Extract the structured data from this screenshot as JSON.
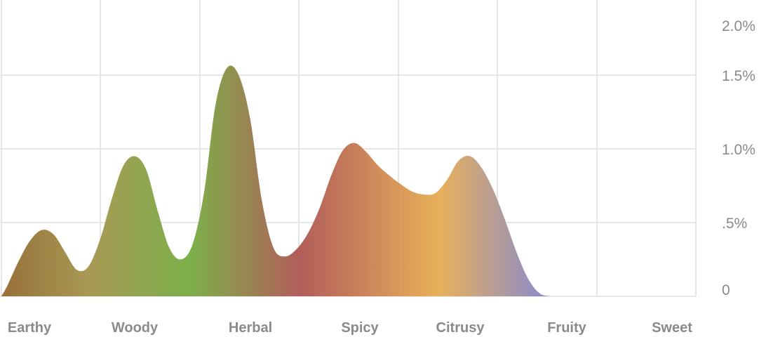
{
  "chart_data": {
    "type": "area",
    "title": "",
    "xlabel": "",
    "ylabel": "",
    "ylim": [
      0,
      2.0
    ],
    "y_ticks": [
      {
        "value": 0,
        "label": "0"
      },
      {
        "value": 0.5,
        "label": ".5%"
      },
      {
        "value": 1.0,
        "label": "1.0%"
      },
      {
        "value": 1.5,
        "label": "1.5%"
      },
      {
        "value": 2.0,
        "label": "2.0%"
      }
    ],
    "y_axis_position": "right",
    "grid": true,
    "categories": [
      "Earthy",
      "Woody",
      "Herbal",
      "Spicy",
      "Citrusy",
      "Fruity",
      "Sweet"
    ],
    "x": [
      0,
      0.05,
      0.15,
      0.25,
      0.35,
      0.45,
      0.55,
      0.65,
      0.75,
      0.85,
      0.95,
      1.05,
      1.15,
      1.25,
      1.35,
      1.45,
      1.55,
      1.65,
      1.75,
      1.85,
      1.95,
      2.05,
      2.15,
      2.25,
      2.35,
      2.45,
      2.55,
      2.65,
      2.75,
      2.85,
      2.95,
      3.05,
      3.15,
      3.25,
      3.35,
      3.45,
      3.55,
      3.65,
      3.75,
      3.85,
      3.95,
      4.05,
      4.15,
      4.25,
      4.35,
      4.45,
      4.55,
      4.65,
      4.75,
      4.85,
      4.95,
      5.05,
      5.15,
      5.25,
      5.35,
      5.45,
      5.55,
      5.65,
      5.75,
      5.85,
      5.95,
      6.0
    ],
    "series": [
      {
        "values": [
          0.0,
          0.07,
          0.24,
          0.38,
          0.45,
          0.42,
          0.3,
          0.18,
          0.2,
          0.38,
          0.65,
          0.88,
          0.95,
          0.86,
          0.58,
          0.33,
          0.25,
          0.35,
          0.7,
          1.3,
          1.55,
          1.5,
          1.2,
          0.65,
          0.33,
          0.27,
          0.32,
          0.43,
          0.6,
          0.82,
          0.99,
          1.04,
          0.98,
          0.89,
          0.82,
          0.76,
          0.71,
          0.69,
          0.7,
          0.79,
          0.92,
          0.95,
          0.87,
          0.72,
          0.52,
          0.3,
          0.12,
          0.02,
          0.0,
          0.0,
          0.0,
          0.0,
          0.0,
          0.0,
          0.0,
          0.0,
          0.0,
          0.0,
          0.0,
          0.0,
          0.0,
          0.0
        ]
      }
    ],
    "fill_gradient": [
      {
        "offset": 0.0,
        "color": "#98703a"
      },
      {
        "offset": 0.13,
        "color": "#a89a55"
      },
      {
        "offset": 0.27,
        "color": "#7cb04a"
      },
      {
        "offset": 0.43,
        "color": "#b25e5a"
      },
      {
        "offset": 0.63,
        "color": "#e8b05a"
      },
      {
        "offset": 0.81,
        "color": "#7a85e0"
      },
      {
        "offset": 1.0,
        "color": "#c44cd6"
      }
    ],
    "grid_color": "#e6e6e6",
    "label_color": "#8a8a8a"
  }
}
